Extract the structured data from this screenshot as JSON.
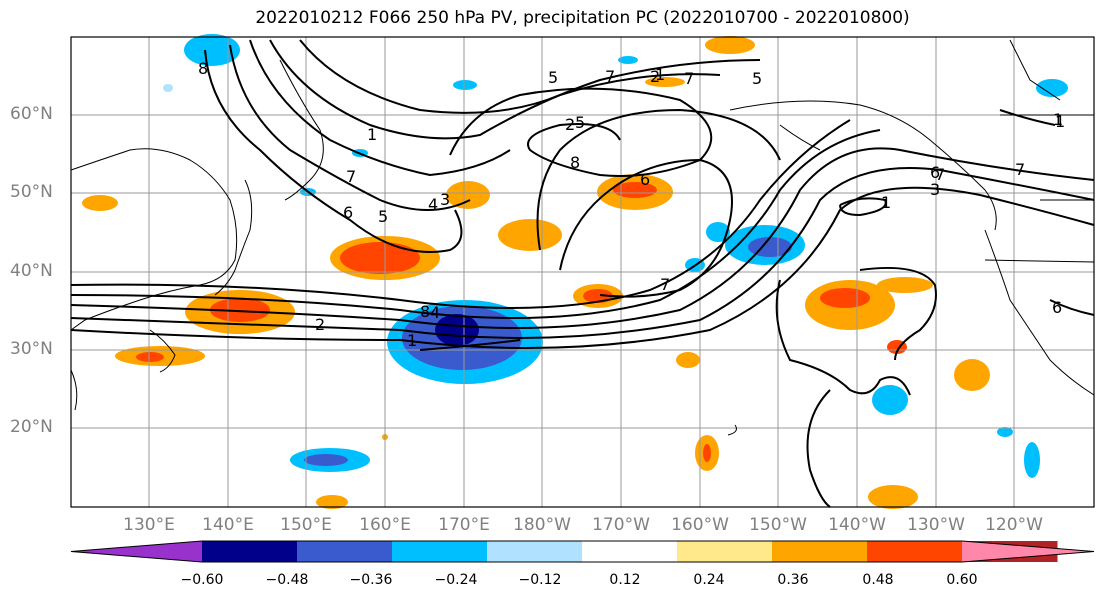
{
  "title": "2022010212 F066 250 hPa PV, precipitation PC (2022010700 - 2022010800)",
  "lat_labels": [
    "60°N",
    "50°N",
    "40°N",
    "30°N",
    "20°N"
  ],
  "lon_labels": [
    "130°E",
    "140°E",
    "150°E",
    "160°E",
    "170°E",
    "180°W",
    "170°W",
    "160°W",
    "150°W",
    "140°W",
    "130°W",
    "120°W"
  ],
  "colorbar": {
    "ticks": [
      "−0.60",
      "−0.48",
      "−0.36",
      "−0.24",
      "−0.12",
      "0.12",
      "0.24",
      "0.36",
      "0.48",
      "0.60"
    ],
    "colors": [
      "#9932cc",
      "#00008b",
      "#3a5bcd",
      "#00bfff",
      "#b0e2ff",
      "#ffffff",
      "#ffe98a",
      "#ffa500",
      "#ff4500",
      "#b22222",
      "#ff88aa"
    ]
  },
  "contour_labels": [
    "8",
    "7",
    "6",
    "5",
    "4",
    "3",
    "2",
    "1",
    "1",
    "2",
    "5",
    "8",
    "7",
    "6",
    "5",
    "7",
    "1",
    "1",
    "6",
    "7",
    "6",
    "8",
    "1",
    "3",
    "4",
    "5",
    "7",
    "1",
    "2",
    "7"
  ],
  "map_style": {
    "shading_colors": {
      "neg_light": "#b0e2ff",
      "neg_mid": "#00bfff",
      "neg_dark": "#3a5bcd",
      "neg_deep": "#00008b",
      "pos_light": "#ffe98a",
      "pos_mid": "#ffa500",
      "pos_dark": "#ff4500"
    },
    "grid": true,
    "contour_color": "#000000"
  }
}
